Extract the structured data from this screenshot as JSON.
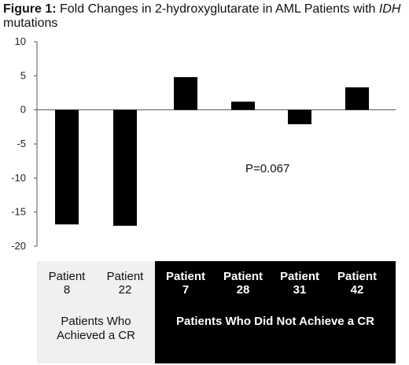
{
  "title": {
    "prefix": "Figure 1:",
    "main": " Fold Changes in 2-hydroxyglutarate in AML Patients with ",
    "italic": "IDH",
    "suffix": " mutations"
  },
  "chart_data": {
    "type": "bar",
    "categories": [
      "Patient 8",
      "Patient 22",
      "Patient 7",
      "Patient 28",
      "Patient 31",
      "Patient 42"
    ],
    "values": [
      -16.8,
      -17.0,
      4.8,
      1.2,
      -2.1,
      3.3
    ],
    "ylim": [
      -20,
      10
    ],
    "yticks": [
      "10",
      "5",
      "0",
      "-5",
      "-10",
      "-15",
      "-20"
    ],
    "annotation": "P=0.067",
    "bar_color": "#000000",
    "grid": false
  },
  "table": {
    "patients": [
      {
        "line1": "Patient",
        "line2": "8",
        "group": "cr"
      },
      {
        "line1": "Patient",
        "line2": "22",
        "group": "cr"
      },
      {
        "line1": "Patient",
        "line2": "7",
        "group": "nocr"
      },
      {
        "line1": "Patient",
        "line2": "28",
        "group": "nocr"
      },
      {
        "line1": "Patient",
        "line2": "31",
        "group": "nocr"
      },
      {
        "line1": "Patient",
        "line2": "42",
        "group": "nocr"
      }
    ],
    "groups": {
      "cr_line1": "Patients Who",
      "cr_line2": "Achieved a CR",
      "nocr": "Patients Who Did Not Achieve a CR"
    },
    "colors": {
      "cr_bg": "#f0f0f0",
      "nocr_bg": "#000000"
    }
  }
}
